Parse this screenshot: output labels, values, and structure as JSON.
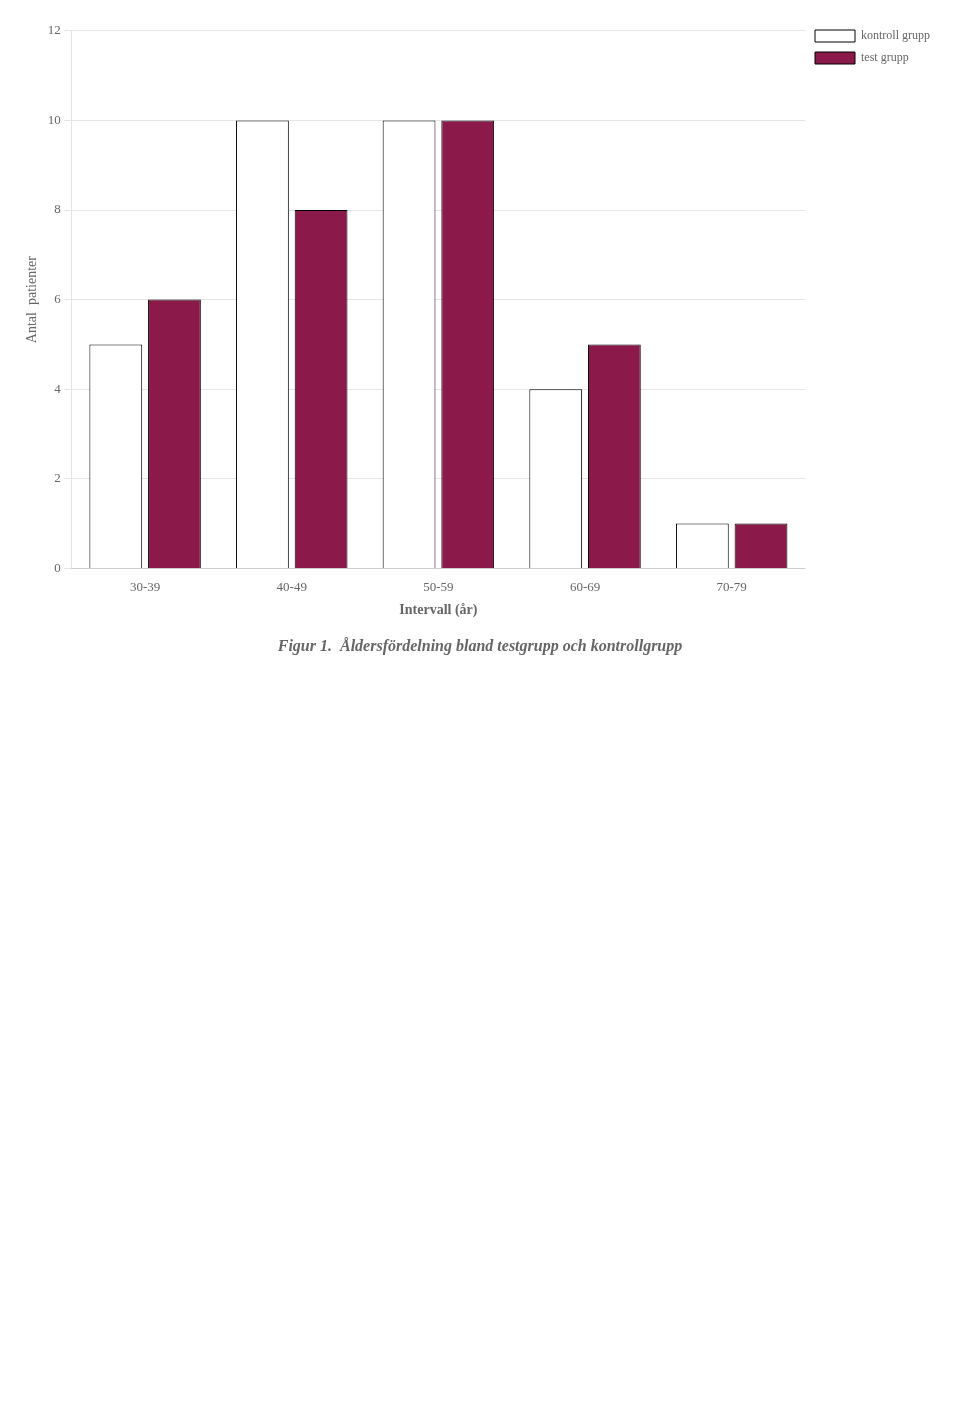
{
  "chart_data": {
    "type": "bar",
    "title": "Figur 1.  Åldersfördelning bland testgrupp och kontrollgrupp",
    "xlabel": "Intervall (år)",
    "ylabel": "Antal  patienter",
    "categories": [
      "30-39",
      "40-49",
      "50-59",
      "60-69",
      "70-79"
    ],
    "series": [
      {
        "name": "kontroll grupp",
        "color": "#FFFFFF",
        "values": [
          5,
          10,
          10,
          4,
          1
        ]
      },
      {
        "name": "test grupp",
        "color": "#8B1A4A",
        "values": [
          6,
          8,
          10,
          5,
          1
        ]
      }
    ],
    "ylim": [
      0,
      12
    ],
    "yticks": [
      0,
      2,
      4,
      6,
      8,
      10,
      12
    ],
    "grid": true,
    "legend": "right"
  }
}
